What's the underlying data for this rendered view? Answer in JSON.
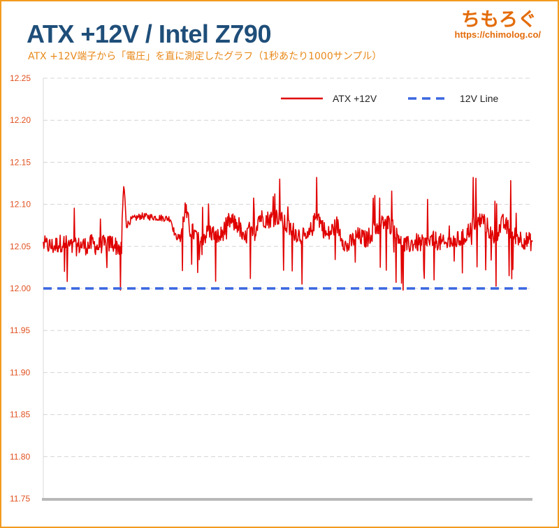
{
  "header": {
    "title": "ATX +12V / Intel Z790",
    "subtitle": "ATX +12V端子から「電圧」を直に測定したグラフ（1秒あたり1000サンプル）",
    "logo": "ちもろぐ",
    "url": "https://chimolog.co/"
  },
  "colors": {
    "accent": "#f29a1f",
    "title": "#1f4e79",
    "series_atx": "#e00000",
    "series_line": "#3a66e0",
    "tick": "#e0501f"
  },
  "chart_data": {
    "type": "line",
    "ylim": [
      11.75,
      12.25
    ],
    "y_ticks": [
      "12.25",
      "12.20",
      "12.15",
      "12.10",
      "12.05",
      "12.00",
      "11.95",
      "11.90",
      "11.85",
      "11.80",
      "11.75"
    ],
    "grid": true,
    "legend_position": "top-right",
    "x_range": [
      0,
      1000
    ],
    "series": [
      {
        "name": "ATX +12V",
        "color": "#e00000",
        "style": "solid",
        "x": [
          0,
          20,
          40,
          60,
          80,
          90,
          100,
          110,
          120,
          130,
          140,
          150,
          160,
          162,
          165,
          170,
          180,
          200,
          220,
          240,
          260,
          270,
          280,
          290,
          300,
          320,
          340,
          360,
          380,
          400,
          410,
          420,
          430,
          440,
          460,
          480,
          500,
          520,
          540,
          560,
          580,
          600,
          620,
          640,
          660,
          680,
          700,
          720,
          740,
          760,
          780,
          800,
          820,
          840,
          860,
          880,
          900,
          920,
          940,
          960,
          980,
          1000
        ],
        "values": [
          12.052,
          12.05,
          12.055,
          12.048,
          12.052,
          12.05,
          12.054,
          12.049,
          12.053,
          12.051,
          12.055,
          12.05,
          12.048,
          12.095,
          12.122,
          12.075,
          12.082,
          12.086,
          12.085,
          12.084,
          12.083,
          12.062,
          12.06,
          12.095,
          12.07,
          12.058,
          12.068,
          12.06,
          12.08,
          12.075,
          12.055,
          12.07,
          12.06,
          12.085,
          12.082,
          12.086,
          12.072,
          12.065,
          12.058,
          12.088,
          12.062,
          12.076,
          12.048,
          12.063,
          12.058,
          12.072,
          12.08,
          12.07,
          12.05,
          12.055,
          12.052,
          12.058,
          12.052,
          12.056,
          12.06,
          12.078,
          12.082,
          12.06,
          12.078,
          12.065,
          12.058,
          12.055
        ]
      },
      {
        "name": "12V Line",
        "color": "#3a66e0",
        "style": "dashed",
        "x": [
          0,
          1000
        ],
        "values": [
          12.0,
          12.0
        ]
      }
    ]
  }
}
